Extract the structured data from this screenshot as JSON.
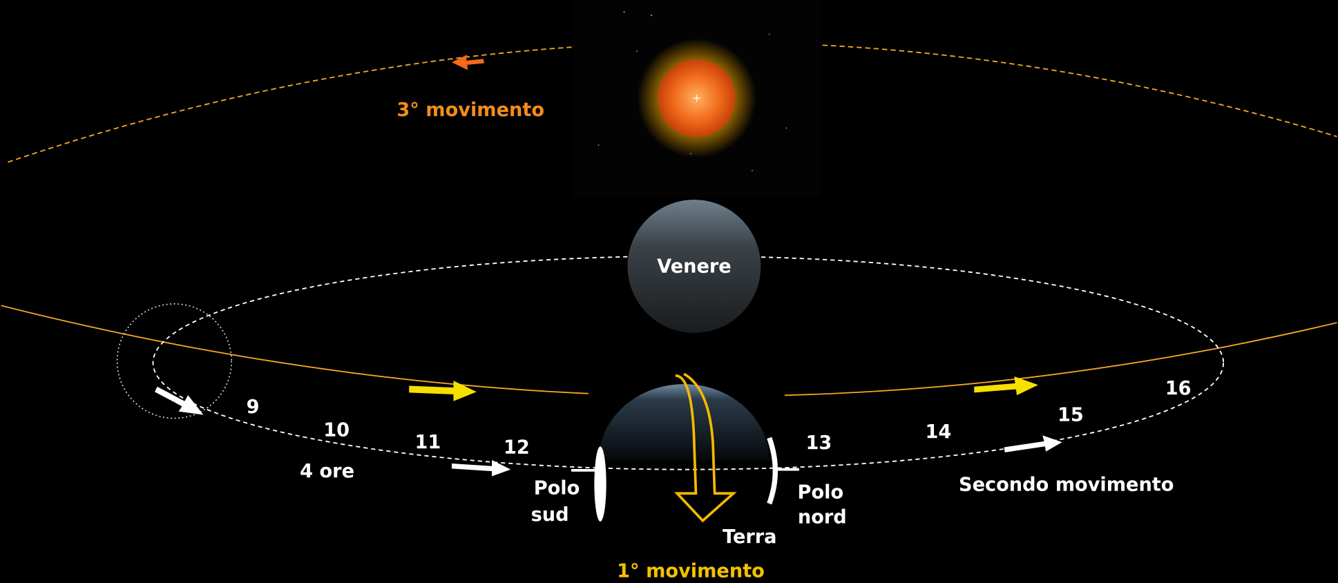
{
  "sun_orbit_label": "3° movimento",
  "venus": "Venere",
  "earth": "Terra",
  "hour_marks": [
    "9",
    "10",
    "11",
    "12",
    "13",
    "14",
    "15",
    "16"
  ],
  "duration": "4 ore",
  "south_pole": [
    "Polo",
    "sud"
  ],
  "north_pole": [
    "Polo",
    "nord"
  ],
  "second_motion": "Secondo movimento",
  "first_motion": "1° movimento"
}
